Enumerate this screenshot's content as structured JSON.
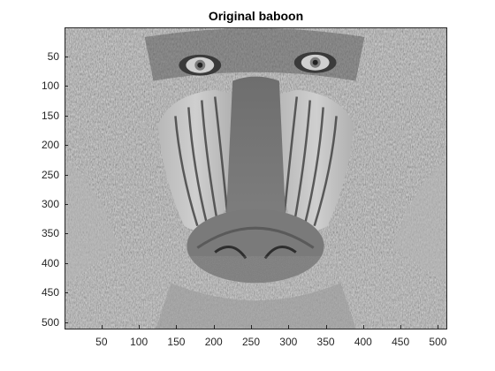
{
  "figure": {
    "title": "Original baboon"
  },
  "image": {
    "subject": "baboon-face-grayscale",
    "x_range": [
      0.5,
      512.5
    ],
    "y_range": [
      0.5,
      512.5
    ],
    "y_direction": "reverse",
    "colormap": "gray"
  },
  "axes": {
    "y_ticks": [
      "50",
      "100",
      "150",
      "200",
      "250",
      "300",
      "350",
      "400",
      "450",
      "500"
    ],
    "x_ticks": [
      "50",
      "100",
      "150",
      "200",
      "250",
      "300",
      "350",
      "400",
      "450",
      "500"
    ]
  }
}
